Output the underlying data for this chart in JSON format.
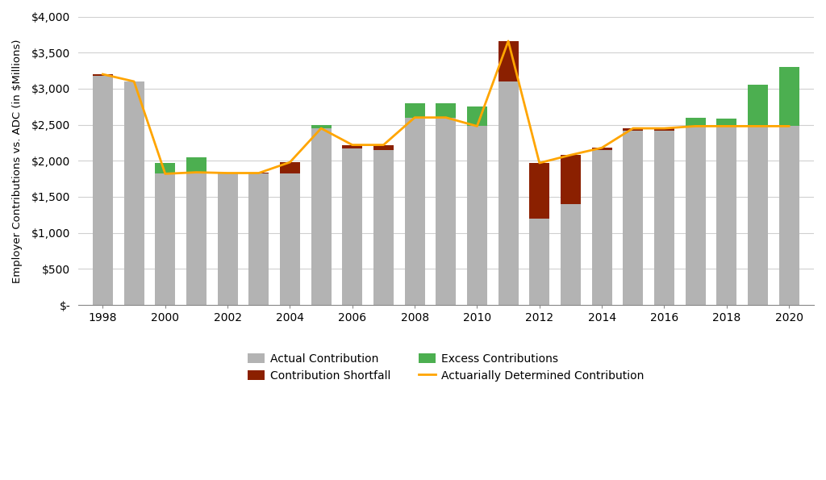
{
  "years": [
    1998,
    1999,
    2000,
    2001,
    2002,
    2003,
    2004,
    2005,
    2006,
    2007,
    2008,
    2009,
    2010,
    2011,
    2012,
    2013,
    2014,
    2015,
    2016,
    2017,
    2018,
    2019,
    2020
  ],
  "actual": [
    3180,
    3100,
    1970,
    2050,
    1820,
    1820,
    1820,
    2500,
    2170,
    2150,
    2800,
    2800,
    2750,
    3100,
    1200,
    1400,
    2150,
    2420,
    2420,
    2600,
    2580,
    3050,
    3300
  ],
  "adc": [
    3200,
    3100,
    1820,
    1840,
    1830,
    1830,
    1980,
    2450,
    2220,
    2220,
    2600,
    2600,
    2480,
    3660,
    1970,
    2080,
    2180,
    2450,
    2450,
    2480,
    2480,
    2480,
    2480
  ],
  "bar_color": "#b3b3b3",
  "excess_color": "#4CAF50",
  "shortfall_color": "#8B2000",
  "adc_color": "#FFA500",
  "ylabel": "Employer Contributions vs. ADC (in $Millions)",
  "ylim": [
    0,
    4000
  ],
  "yticks": [
    0,
    500,
    1000,
    1500,
    2000,
    2500,
    3000,
    3500,
    4000
  ],
  "ytick_labels": [
    "$-",
    "$500",
    "$1,000",
    "$1,500",
    "$2,000",
    "$2,500",
    "$3,000",
    "$3,500",
    "$4,000"
  ],
  "xtick_years": [
    1998,
    2000,
    2002,
    2004,
    2006,
    2008,
    2010,
    2012,
    2014,
    2016,
    2018,
    2020
  ],
  "background_color": "#ffffff",
  "grid_color": "#d0d0d0",
  "legend_labels": [
    "Actual Contribution",
    "Contribution Shortfall",
    "Excess Contributions",
    "Actuarially Determined Contribution"
  ]
}
